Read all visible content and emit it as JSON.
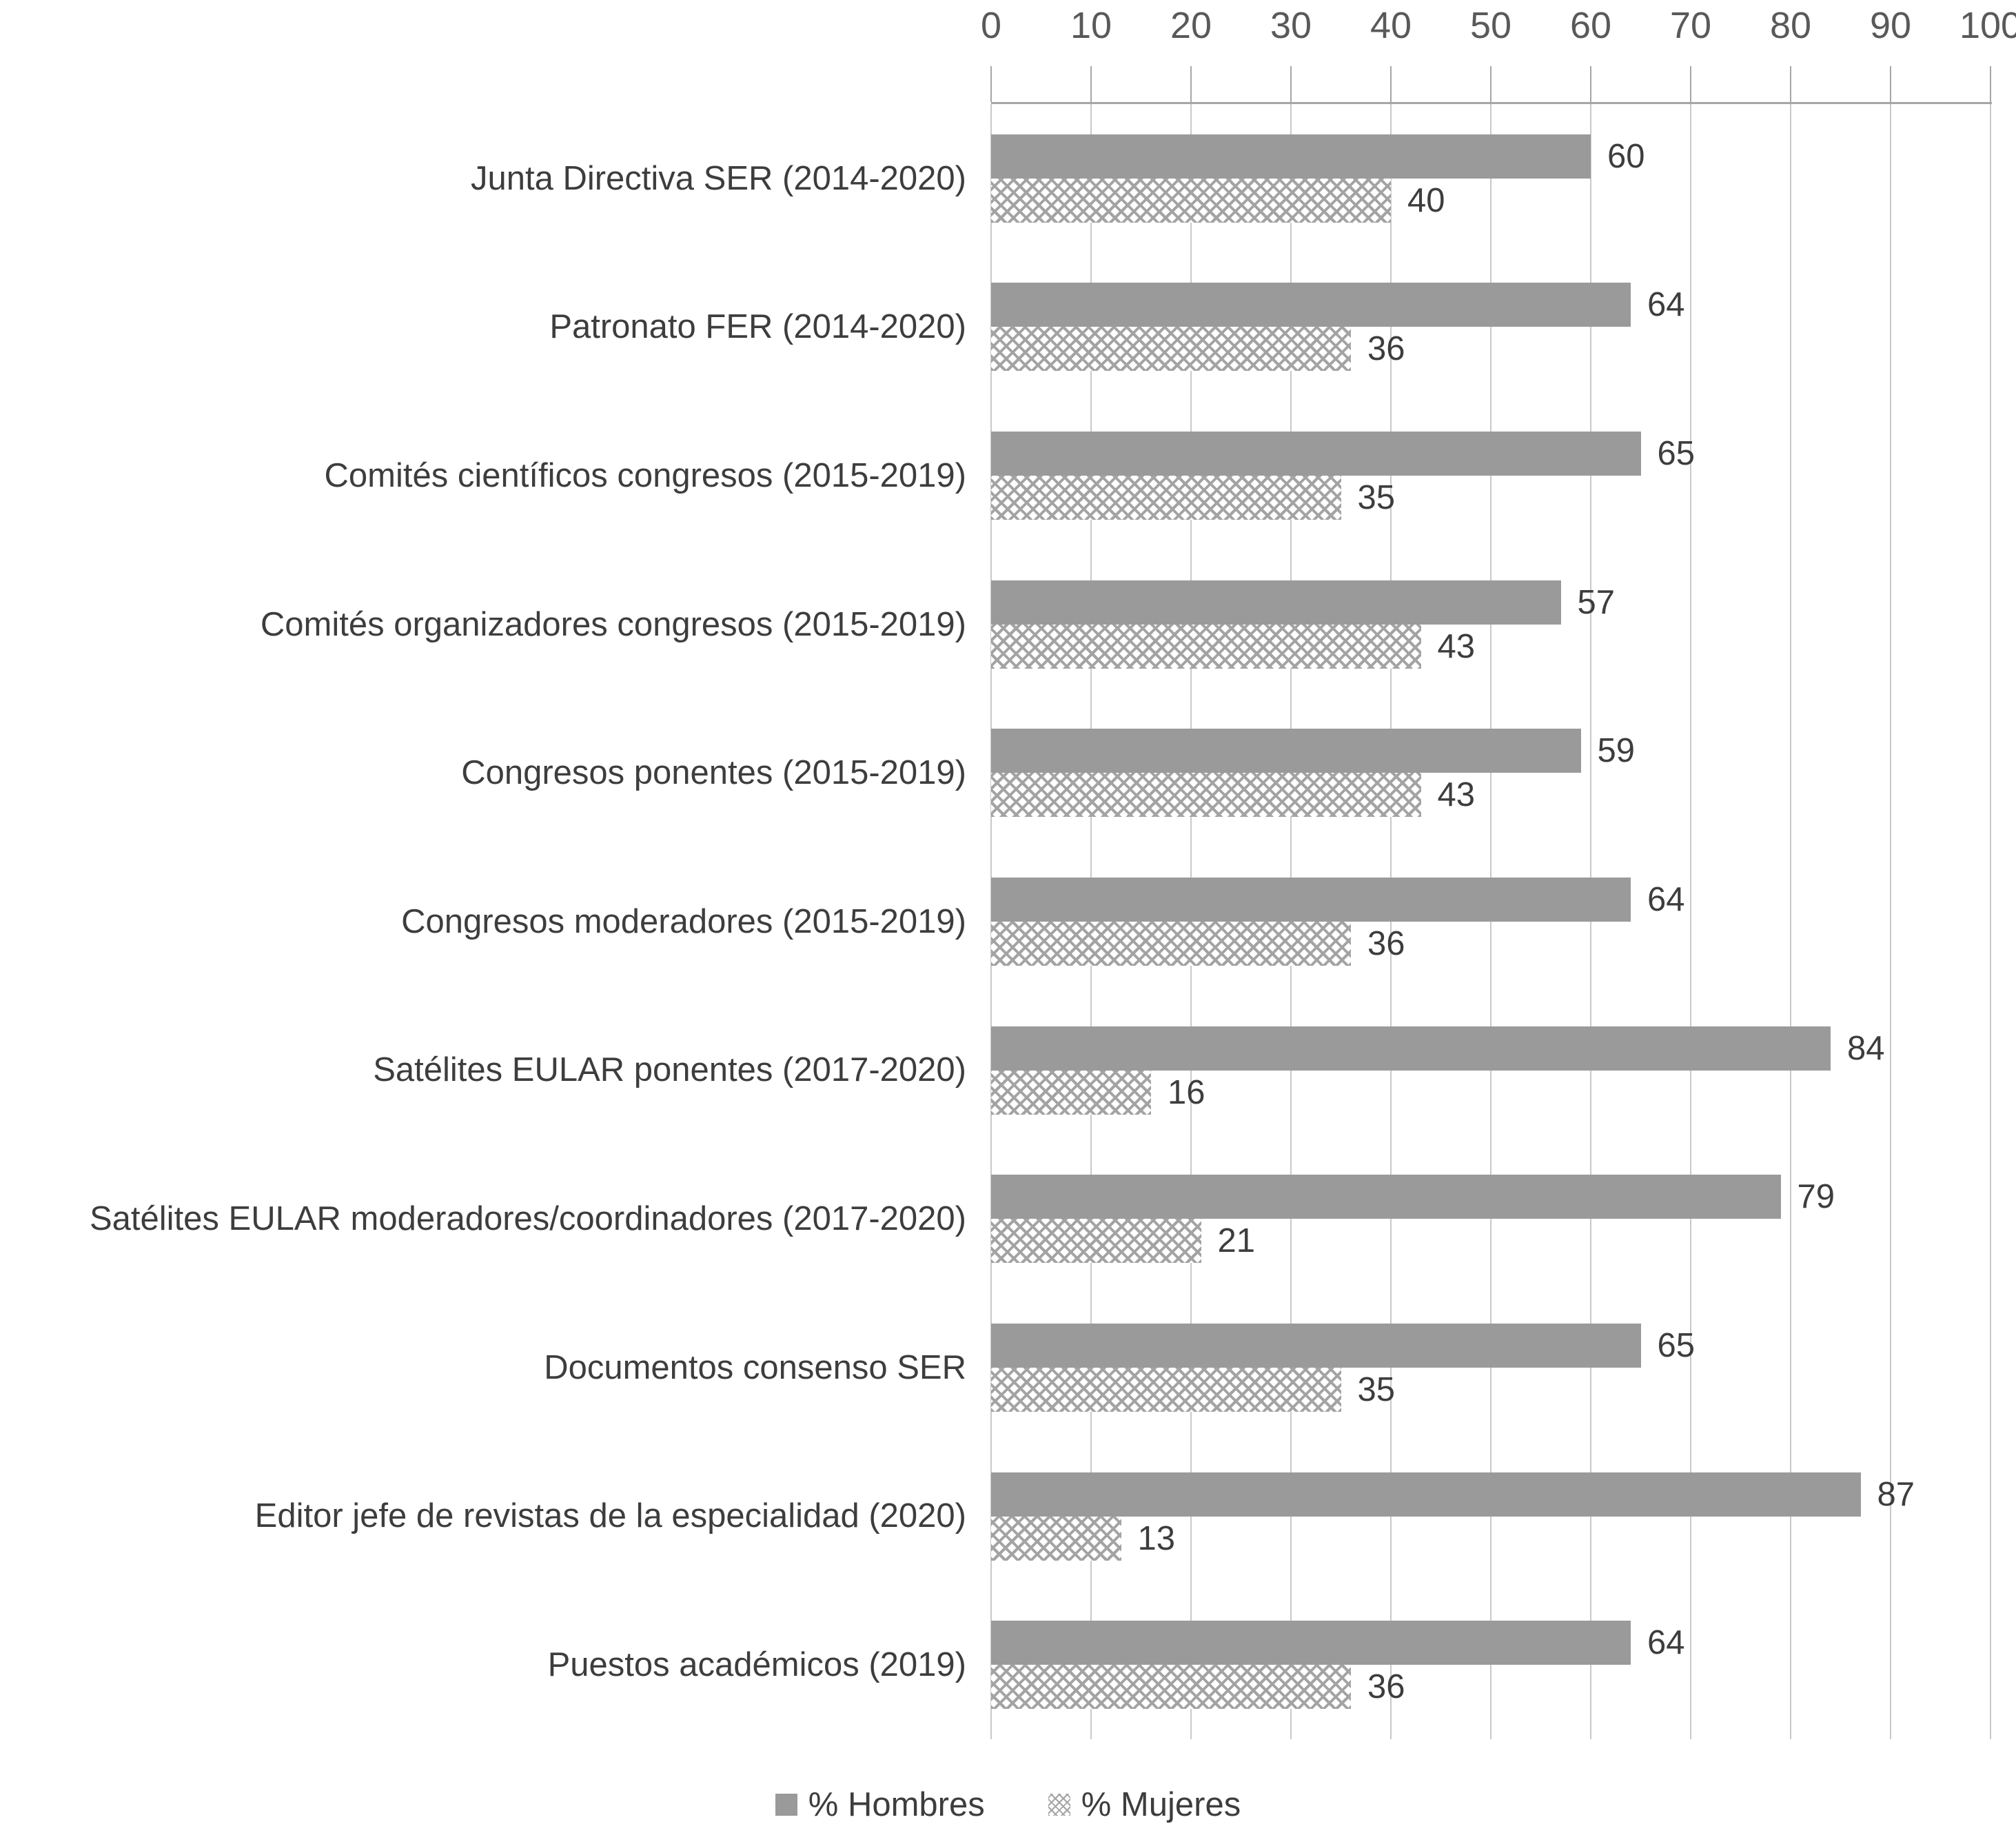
{
  "chart_data": {
    "type": "bar",
    "orientation": "horizontal",
    "title": "",
    "xlabel": "",
    "ylabel": "",
    "xlim": [
      0,
      100
    ],
    "x_ticks": [
      0,
      10,
      20,
      30,
      40,
      50,
      60,
      70,
      80,
      90,
      100
    ],
    "axis_position": "top",
    "grid": true,
    "legend_position": "bottom",
    "categories": [
      "Junta Directiva SER (2014-2020)",
      "Patronato FER (2014-2020)",
      "Comités científicos congresos (2015-2019)",
      "Comités organizadores congresos (2015-2019)",
      "Congresos ponentes (2015-2019)",
      "Congresos moderadores (2015-2019)",
      "Satélites EULAR ponentes (2017-2020)",
      "Satélites EULAR moderadores/coordinadores  (2017-2020)",
      "Documentos consenso SER",
      "Editor jefe de revistas de la especialidad (2020)",
      "Puestos académicos (2019)"
    ],
    "series": [
      {
        "name": "% Hombres",
        "pattern": "solid",
        "values": [
          60,
          64,
          65,
          57,
          59,
          64,
          84,
          79,
          65,
          87,
          64
        ]
      },
      {
        "name": "% Mujeres",
        "pattern": "crosshatch",
        "values": [
          40,
          36,
          35,
          43,
          43,
          36,
          16,
          21,
          35,
          13,
          36
        ]
      }
    ]
  },
  "colors": {
    "background": "#ffffff",
    "bar_solid": "#9a9a9a",
    "hatch_line": "#a3a3a3",
    "gridline": "#c9c9c9",
    "axis_line": "#a6a6a6",
    "tick_label": "#595959",
    "text": "#3d3d3d"
  }
}
